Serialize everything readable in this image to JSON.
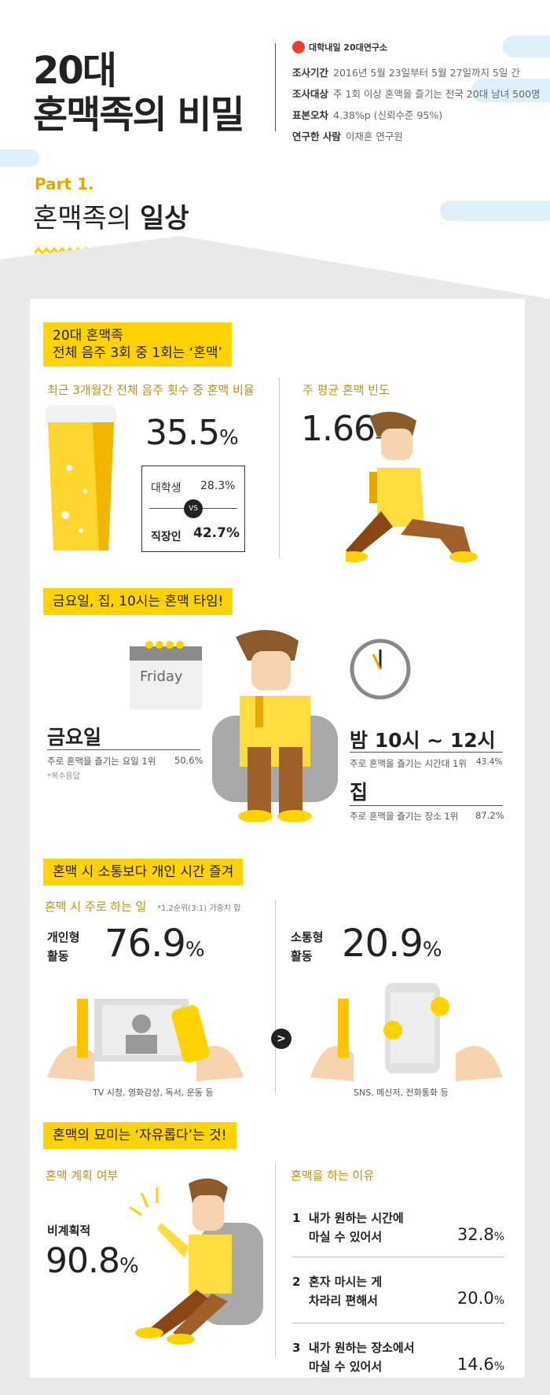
{
  "header": {
    "title_line1": "20대",
    "title_line2": "혼맥족의 비밀",
    "logo_text": "대학내일 20대연구소",
    "info": [
      {
        "label": "조사기간",
        "value": "2016년 5월 23일부터 5월 27일까지 5일 간"
      },
      {
        "label": "조사대상",
        "value": "주 1회 이상 혼맥을 즐기는 전국 20대 남녀 500명"
      },
      {
        "label": "표본오차",
        "value": "4.38%p (신뢰수준 95%)"
      },
      {
        "label": "연구한 사람",
        "value": "이재흔 연구원"
      }
    ]
  },
  "part": {
    "number": "Part 1.",
    "title_light": "혼맥족의 ",
    "title_bold": "일상"
  },
  "s1": {
    "label_line1": "20대 혼맥족",
    "label_line2": "전체 음주 3회 중 1회는 ‘혼맥’",
    "left_sub": "최근 3개월간 전체 음주 횟수 중 혼맥 비율",
    "ratio": "35.5",
    "unit": "%",
    "college_label": "대학생",
    "college_value": "28.3%",
    "vs": "VS",
    "worker_label": "직장인",
    "worker_value": "42.7%",
    "right_sub": "주 평균 혼맥 빈도",
    "freq": "1.66",
    "freq_unit": "회"
  },
  "s2": {
    "label": "금요일, 집, 10시는 혼맥 타임!",
    "calendar_text": "Friday",
    "day_title": "금요일",
    "day_desc": "주로 혼맥을 즐기는 요일 1위",
    "day_pct": "50.6%",
    "day_note": "*복수응답",
    "time_title": "밤 10시 ~ 12시",
    "time_desc": "주로 혼맥을 즐기는 시간대 1위",
    "time_pct": "43.4%",
    "place_title": "집",
    "place_desc": "주로 혼맥을 즐기는 장소 1위",
    "place_pct": "87.2%"
  },
  "s3": {
    "label": "혼맥 시 소통보다 개인 시간 즐겨",
    "sub": "혼맥 시 주로 하는 일",
    "sub_note": "*1,2순위(3:1) 가중치 합",
    "personal_l1": "개인형",
    "personal_l2": "활동",
    "personal_pct": "76.9",
    "social_l1": "소통형",
    "social_l2": "활동",
    "social_pct": "20.9",
    "unit": "%",
    "personal_caption": "TV 시청, 영화감상, 독서, 운동 등",
    "social_caption": "SNS, 메신저, 전화통화 등",
    "compare": ">"
  },
  "s4": {
    "label": "혼맥의 묘미는 ‘자유롭다’는 것!",
    "plan_sub": "혼맥 계획 여부",
    "plan_label": "비계획적",
    "plan_pct": "90.8",
    "unit": "%",
    "reason_sub": "혼맥을 하는 이유",
    "reasons": [
      {
        "rank": "1",
        "l1": "내가 원하는 시간에",
        "l2": "마실 수 있어서",
        "pct": "32.8"
      },
      {
        "rank": "2",
        "l1": "혼자 마시는 게",
        "l2": "차라리 편해서",
        "pct": "20.0"
      },
      {
        "rank": "3",
        "l1": "내가 원하는 장소에서",
        "l2": "마실 수 있어서",
        "pct": "14.6"
      }
    ]
  },
  "colors": {
    "yellow": "#ffd200",
    "gold": "#b8921a",
    "gray_bg": "#e9e9e9",
    "cloud": "#dff0fa",
    "logo_red": "#e8402c"
  }
}
